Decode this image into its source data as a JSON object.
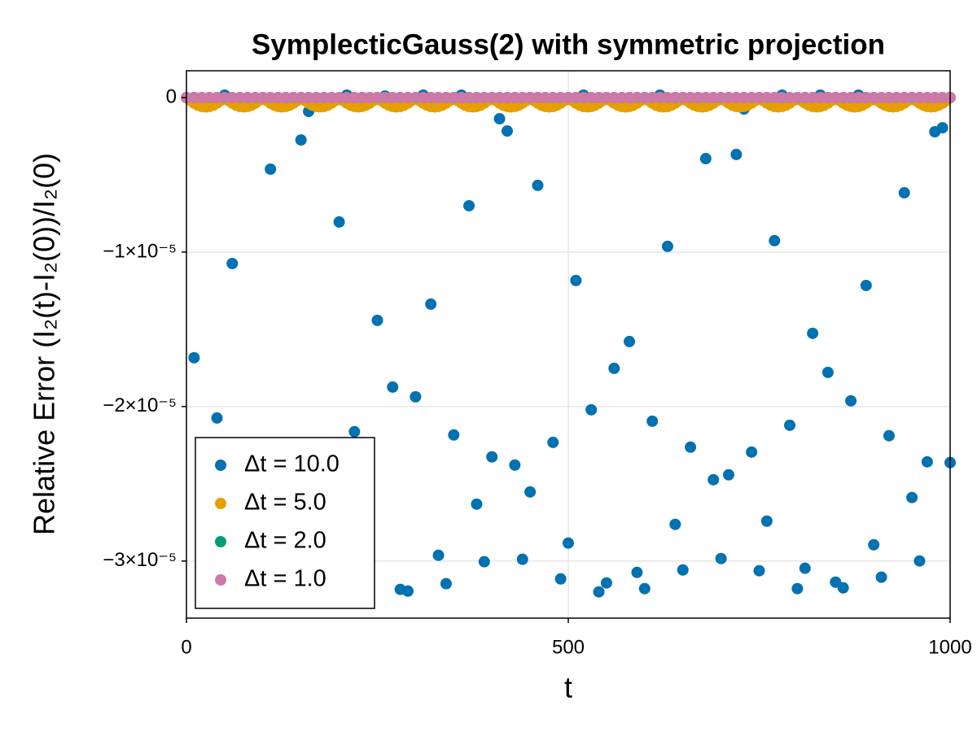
{
  "chart_data": {
    "type": "scatter",
    "title": "SymplecticGauss(2) with symmetric projection",
    "x_label": "t",
    "y_label": "Relative Error (I₂(t)-I₂(0))/I₂(0)",
    "xlim": [
      0,
      1000
    ],
    "xticks": [
      0,
      500,
      1000
    ],
    "ylim": [
      -3.37e-05,
      1.74e-06
    ],
    "yticks": [
      {
        "value": -3e-05,
        "label": "−3×10⁻⁵"
      },
      {
        "value": -2e-05,
        "label": "−2×10⁻⁵"
      },
      {
        "value": -1e-05,
        "label": "−1×10⁻⁵"
      },
      0
    ],
    "grid": true,
    "legend": "bottom-left",
    "series": [
      {
        "name": "Δt = 10.0",
        "color": "#0072b2",
        "x": [
          0,
          10,
          20,
          30,
          40,
          50,
          60,
          70,
          80,
          90,
          100,
          110,
          120,
          130,
          140,
          150,
          160,
          170,
          180,
          190,
          200,
          210,
          220,
          230,
          240,
          250,
          260,
          270,
          280,
          290,
          300,
          310,
          320,
          330,
          340,
          350,
          360,
          370,
          380,
          390,
          400,
          410,
          420,
          430,
          440,
          450,
          460,
          470,
          480,
          490,
          500,
          510,
          520,
          530,
          540,
          550,
          560,
          570,
          580,
          590,
          600,
          610,
          620,
          630,
          640,
          650,
          660,
          670,
          680,
          690,
          700,
          710,
          720,
          730,
          740,
          750,
          760,
          770,
          780,
          790,
          800,
          810,
          820,
          830,
          840,
          850,
          860,
          870,
          880,
          890,
          900,
          910,
          920,
          930,
          940,
          950,
          960,
          970,
          980,
          990,
          1000
        ],
        "values": [
          0,
          -1.684e-05,
          -1e-07,
          -1e-07,
          -2.074e-05,
          1.6e-07,
          -1.074e-05,
          -1e-07,
          -1e-07,
          -1e-07,
          -5e-08,
          -4.63e-06,
          -1e-07,
          -1e-07,
          -1e-07,
          -2.74e-06,
          -8.9e-07,
          -1e-07,
          -1e-07,
          -1e-07,
          -8.05e-06,
          1.6e-07,
          -2.163e-05,
          -1e-07,
          -1e-07,
          -1.442e-05,
          1e-07,
          -1.874e-05,
          -3.184e-05,
          -3.195e-05,
          -1.937e-05,
          1.6e-07,
          -1.337e-05,
          -2.963e-05,
          -3.147e-05,
          -2.184e-05,
          1.6e-07,
          -7e-06,
          -2.632e-05,
          -3.005e-05,
          -2.326e-05,
          -1.37e-06,
          -2.16e-06,
          -2.379e-05,
          -2.989e-05,
          -2.553e-05,
          -5.68e-06,
          -1e-07,
          -2.232e-05,
          -3.116e-05,
          -2.884e-05,
          -1.184e-05,
          1.6e-07,
          -2.021e-05,
          -3.2e-05,
          -3.142e-05,
          -1.753e-05,
          -1e-07,
          -1.579e-05,
          -3.074e-05,
          -3.179e-05,
          -2.095e-05,
          1.6e-07,
          -9.63e-06,
          -2.763e-05,
          -3.058e-05,
          -2.263e-05,
          -5.3e-07,
          -3.95e-06,
          -2.474e-05,
          -2.984e-05,
          -2.442e-05,
          -3.68e-06,
          -7.4e-07,
          -2.295e-05,
          -3.063e-05,
          -2.742e-05,
          -9.26e-06,
          1.6e-07,
          -2.121e-05,
          -3.179e-05,
          -3.047e-05,
          -1.526e-05,
          1.6e-07,
          -1.779e-05,
          -3.137e-05,
          -3.174e-05,
          -1.963e-05,
          1.6e-07,
          -1.216e-05,
          -2.895e-05,
          -3.105e-05,
          -2.189e-05,
          -1e-07,
          -6.16e-06,
          -2.589e-05,
          -3e-05,
          -2.358e-05,
          -2.21e-06,
          -1.95e-06,
          -2.363e-05
        ]
      },
      {
        "name": "Δt = 5.0",
        "color": "#e69f00",
        "x": [
          0,
          5,
          10,
          15,
          20,
          25,
          30,
          35,
          40,
          45,
          50,
          55,
          60,
          65,
          70,
          75,
          80,
          85,
          90,
          95,
          100,
          105,
          110,
          115,
          120,
          125,
          130,
          135,
          140,
          145,
          150,
          155,
          160,
          165,
          170,
          175,
          180,
          185,
          190,
          195,
          200,
          205,
          210,
          215,
          220,
          225,
          230,
          235,
          240,
          245,
          250,
          255,
          260,
          265,
          270,
          275,
          280,
          285,
          290,
          295,
          300,
          305,
          310,
          315,
          320,
          325,
          330,
          335,
          340,
          345,
          350,
          355,
          360,
          365,
          370,
          375,
          380,
          385,
          390,
          395,
          400,
          405,
          410,
          415,
          420,
          425,
          430,
          435,
          440,
          445,
          450,
          455,
          460,
          465,
          470,
          475,
          480,
          485,
          490,
          495,
          500,
          505,
          510,
          515,
          520,
          525,
          530,
          535,
          540,
          545,
          550,
          555,
          560,
          565,
          570,
          575,
          580,
          585,
          590,
          595,
          600,
          605,
          610,
          615,
          620,
          625,
          630,
          635,
          640,
          645,
          650,
          655,
          660,
          665,
          670,
          675,
          680,
          685,
          690,
          695,
          700,
          705,
          710,
          715,
          720,
          725,
          730,
          735,
          740,
          745,
          750,
          755,
          760,
          765,
          770,
          775,
          780,
          785,
          790,
          795,
          800,
          805,
          810,
          815,
          820,
          825,
          830,
          835,
          840,
          845,
          850,
          855,
          860,
          865,
          870,
          875,
          880,
          885,
          890,
          895,
          900,
          905,
          910,
          915,
          920,
          925,
          930,
          935,
          940,
          945,
          950,
          955,
          960,
          965,
          970,
          975,
          980,
          985,
          990,
          995,
          1000
        ],
        "values": [
          0,
          -1.85e-07,
          -3.53e-07,
          -4.85e-07,
          -5.71e-07,
          -6e-07,
          -5.71e-07,
          -4.85e-07,
          -3.53e-07,
          -1.85e-07,
          0,
          -1.85e-07,
          -3.53e-07,
          -4.85e-07,
          -5.71e-07,
          -6e-07,
          -5.71e-07,
          -4.85e-07,
          -3.53e-07,
          -1.85e-07,
          0,
          -1.85e-07,
          -3.53e-07,
          -4.85e-07,
          -5.71e-07,
          -6e-07,
          -5.71e-07,
          -4.85e-07,
          -3.53e-07,
          -1.85e-07,
          0,
          -1.85e-07,
          -3.53e-07,
          -4.85e-07,
          -5.71e-07,
          -6e-07,
          -5.71e-07,
          -4.85e-07,
          -3.53e-07,
          -1.85e-07,
          0,
          -1.85e-07,
          -3.53e-07,
          -4.85e-07,
          -5.71e-07,
          -6e-07,
          -5.71e-07,
          -4.85e-07,
          -3.53e-07,
          -1.85e-07,
          0,
          -1.85e-07,
          -3.53e-07,
          -4.85e-07,
          -5.71e-07,
          -6e-07,
          -5.71e-07,
          -4.85e-07,
          -3.53e-07,
          -1.85e-07,
          0,
          -1.85e-07,
          -3.53e-07,
          -4.85e-07,
          -5.71e-07,
          -6e-07,
          -5.71e-07,
          -4.85e-07,
          -3.53e-07,
          -1.85e-07,
          0,
          -1.85e-07,
          -3.53e-07,
          -4.85e-07,
          -5.71e-07,
          -6e-07,
          -5.71e-07,
          -4.85e-07,
          -3.53e-07,
          -1.85e-07,
          0,
          -1.85e-07,
          -3.53e-07,
          -4.85e-07,
          -5.71e-07,
          -6e-07,
          -5.71e-07,
          -4.85e-07,
          -3.53e-07,
          -1.85e-07,
          0,
          -1.85e-07,
          -3.53e-07,
          -4.85e-07,
          -5.71e-07,
          -6e-07,
          -5.71e-07,
          -4.85e-07,
          -3.53e-07,
          -1.85e-07,
          0,
          -1.85e-07,
          -3.53e-07,
          -4.85e-07,
          -5.71e-07,
          -6e-07,
          -5.71e-07,
          -4.85e-07,
          -3.53e-07,
          -1.85e-07,
          0,
          -1.85e-07,
          -3.53e-07,
          -4.85e-07,
          -5.71e-07,
          -6e-07,
          -5.71e-07,
          -4.85e-07,
          -3.53e-07,
          -1.85e-07,
          0,
          -1.85e-07,
          -3.53e-07,
          -4.85e-07,
          -5.71e-07,
          -6e-07,
          -5.71e-07,
          -4.85e-07,
          -3.53e-07,
          -1.85e-07,
          0,
          -1.85e-07,
          -3.53e-07,
          -4.85e-07,
          -5.71e-07,
          -6e-07,
          -5.71e-07,
          -4.85e-07,
          -3.53e-07,
          -1.85e-07,
          0,
          -1.85e-07,
          -3.53e-07,
          -4.85e-07,
          -5.71e-07,
          -6e-07,
          -5.71e-07,
          -4.85e-07,
          -3.53e-07,
          -1.85e-07,
          0,
          -1.85e-07,
          -3.53e-07,
          -4.85e-07,
          -5.71e-07,
          -6e-07,
          -5.71e-07,
          -4.85e-07,
          -3.53e-07,
          -1.85e-07,
          0,
          -1.85e-07,
          -3.53e-07,
          -4.85e-07,
          -5.71e-07,
          -6e-07,
          -5.71e-07,
          -4.85e-07,
          -3.53e-07,
          -1.85e-07,
          0,
          -1.85e-07,
          -3.53e-07,
          -4.85e-07,
          -5.71e-07,
          -6e-07,
          -5.71e-07,
          -4.85e-07,
          -3.53e-07,
          -1.85e-07,
          0,
          -1.85e-07,
          -3.53e-07,
          -4.85e-07,
          -5.71e-07,
          -6e-07,
          -5.71e-07,
          -4.85e-07,
          -3.53e-07,
          -1.85e-07,
          0,
          -1.85e-07,
          -3.53e-07,
          -4.85e-07,
          -5.71e-07,
          -6e-07,
          -5.71e-07,
          -4.85e-07,
          -3.53e-07,
          -1.85e-07,
          0
        ]
      },
      {
        "name": "Δt = 2.0",
        "color": "#009e73",
        "x": [
          0,
          10,
          20,
          30,
          40,
          50,
          60,
          70,
          80,
          90,
          100,
          110,
          120,
          130,
          140,
          150,
          160,
          170,
          180,
          190,
          200,
          210,
          220,
          230,
          240,
          250,
          260,
          270,
          280,
          290,
          300,
          310,
          320,
          330,
          340,
          350,
          360,
          370,
          380,
          390,
          400,
          410,
          420,
          430,
          440,
          450,
          460,
          470,
          480,
          490,
          500,
          510,
          520,
          530,
          540,
          550,
          560,
          570,
          580,
          590,
          600,
          610,
          620,
          630,
          640,
          650,
          660,
          670,
          680,
          690,
          700,
          710,
          720,
          730,
          740,
          750,
          760,
          770,
          780,
          790,
          800,
          810,
          820,
          830,
          840,
          850,
          860,
          870,
          880,
          890,
          900,
          910,
          920,
          930,
          940,
          950,
          960,
          970,
          980,
          990,
          1000
        ],
        "values": [
          0,
          0,
          0,
          0,
          0,
          0,
          0,
          0,
          0,
          0,
          0,
          0,
          0,
          0,
          0,
          0,
          0,
          0,
          0,
          0,
          0,
          0,
          0,
          0,
          0,
          0,
          0,
          0,
          0,
          0,
          0,
          0,
          0,
          0,
          0,
          0,
          0,
          0,
          0,
          0,
          0,
          0,
          0,
          0,
          0,
          0,
          0,
          0,
          0,
          0,
          0,
          0,
          0,
          0,
          0,
          0,
          0,
          0,
          0,
          0,
          0,
          0,
          0,
          0,
          0,
          0,
          0,
          0,
          0,
          0,
          0,
          0,
          0,
          0,
          0,
          0,
          0,
          0,
          0,
          0,
          0,
          0,
          0,
          0,
          0,
          0,
          0,
          0,
          0,
          0,
          0,
          0,
          0,
          0,
          0,
          0,
          0,
          0,
          0,
          0,
          0
        ]
      },
      {
        "name": "Δt = 1.0",
        "color": "#cc79a7",
        "x": [
          0,
          10,
          20,
          30,
          40,
          50,
          60,
          70,
          80,
          90,
          100,
          110,
          120,
          130,
          140,
          150,
          160,
          170,
          180,
          190,
          200,
          210,
          220,
          230,
          240,
          250,
          260,
          270,
          280,
          290,
          300,
          310,
          320,
          330,
          340,
          350,
          360,
          370,
          380,
          390,
          400,
          410,
          420,
          430,
          440,
          450,
          460,
          470,
          480,
          490,
          500,
          510,
          520,
          530,
          540,
          550,
          560,
          570,
          580,
          590,
          600,
          610,
          620,
          630,
          640,
          650,
          660,
          670,
          680,
          690,
          700,
          710,
          720,
          730,
          740,
          750,
          760,
          770,
          780,
          790,
          800,
          810,
          820,
          830,
          840,
          850,
          860,
          870,
          880,
          890,
          900,
          910,
          920,
          930,
          940,
          950,
          960,
          970,
          980,
          990,
          1000
        ],
        "values": [
          0,
          0,
          0,
          0,
          0,
          0,
          0,
          0,
          0,
          0,
          0,
          0,
          0,
          0,
          0,
          0,
          0,
          0,
          0,
          0,
          0,
          0,
          0,
          0,
          0,
          0,
          0,
          0,
          0,
          0,
          0,
          0,
          0,
          0,
          0,
          0,
          0,
          0,
          0,
          0,
          0,
          0,
          0,
          0,
          0,
          0,
          0,
          0,
          0,
          0,
          0,
          0,
          0,
          0,
          0,
          0,
          0,
          0,
          0,
          0,
          0,
          0,
          0,
          0,
          0,
          0,
          0,
          0,
          0,
          0,
          0,
          0,
          0,
          0,
          0,
          0,
          0,
          0,
          0,
          0,
          0,
          0,
          0,
          0,
          0,
          0,
          0,
          0,
          0,
          0,
          0,
          0,
          0,
          0,
          0,
          0,
          0,
          0,
          0,
          0,
          0
        ]
      }
    ]
  }
}
